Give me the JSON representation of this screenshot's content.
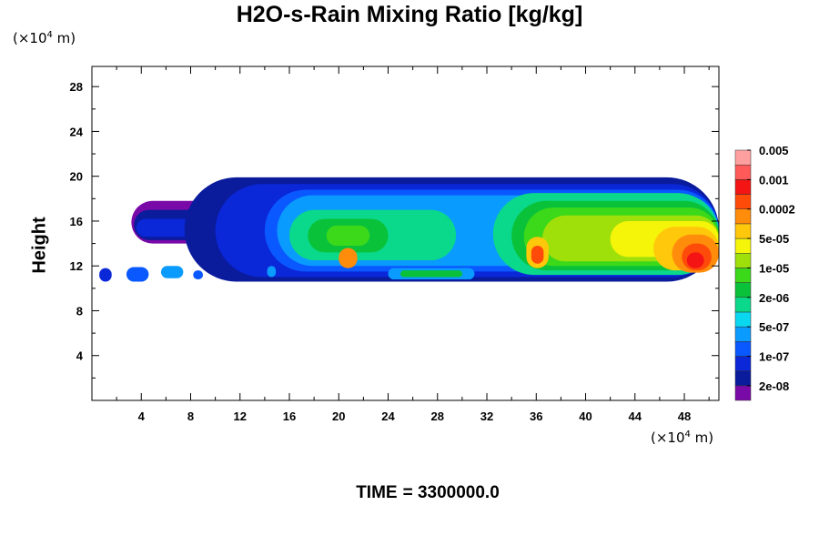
{
  "chart_data": {
    "type": "heatmap",
    "title": "H2O-s-Rain Mixing Ratio [kg/kg]",
    "ylabel": "Height",
    "x_unit": {
      "base": "(×10",
      "exp": "4",
      "tail": " m)"
    },
    "y_unit": {
      "base": "(×10",
      "exp": "4",
      "tail": " m)"
    },
    "x_ticks": [
      "4",
      "8",
      "12",
      "16",
      "20",
      "24",
      "28",
      "32",
      "36",
      "40",
      "44",
      "48"
    ],
    "y_ticks": [
      "4",
      "8",
      "12",
      "16",
      "20",
      "24",
      "28"
    ],
    "xlim": [
      0,
      50.8
    ],
    "ylim": [
      0,
      29.8
    ],
    "time_label": "TIME",
    "time_value": "= 3300000.0",
    "colorbar": {
      "colors": [
        "#7a0aa8",
        "#0a1b9c",
        "#0a27d8",
        "#0a58ff",
        "#0a9bff",
        "#0ad8f0",
        "#0ad88a",
        "#0ac23a",
        "#3cd81a",
        "#a0e00a",
        "#f5f50a",
        "#ffc80a",
        "#ff8c0a",
        "#ff4b0a",
        "#f51414",
        "#ff5a5a",
        "#ffa0a0"
      ],
      "labels": [
        "2e-08",
        "1e-07",
        "5e-07",
        "2e-06",
        "1e-05",
        "5e-05",
        "0.0002",
        "0.001",
        "0.005"
      ]
    },
    "regions": [
      {
        "level": 0,
        "x0": 3.2,
        "x1": 10.5,
        "y0": 14.0,
        "y1": 17.8
      },
      {
        "level": 1,
        "x0": 3.4,
        "x1": 9.5,
        "y0": 14.3,
        "y1": 17.0
      },
      {
        "level": 2,
        "x0": 3.6,
        "x1": 8.5,
        "y0": 14.6,
        "y1": 16.2
      },
      {
        "level": 1,
        "x0": 7.5,
        "x1": 50.8,
        "y0": 10.6,
        "y1": 19.9
      },
      {
        "level": 2,
        "x0": 10.0,
        "x1": 50.8,
        "y0": 11.0,
        "y1": 19.3
      },
      {
        "level": 3,
        "x0": 14.0,
        "x1": 50.8,
        "y0": 11.5,
        "y1": 18.8
      },
      {
        "level": 4,
        "x0": 15.0,
        "x1": 50.8,
        "y0": 12.0,
        "y1": 18.3
      },
      {
        "level": 6,
        "x0": 16.0,
        "x1": 29.5,
        "y0": 12.5,
        "y1": 17.0
      },
      {
        "level": 7,
        "x0": 17.5,
        "x1": 24.0,
        "y0": 13.2,
        "y1": 16.2
      },
      {
        "level": 8,
        "x0": 19.0,
        "x1": 22.5,
        "y0": 13.8,
        "y1": 15.6
      },
      {
        "level": 6,
        "x0": 32.5,
        "x1": 50.8,
        "y0": 11.2,
        "y1": 18.5
      },
      {
        "level": 7,
        "x0": 34.0,
        "x1": 50.8,
        "y0": 11.6,
        "y1": 17.8
      },
      {
        "level": 8,
        "x0": 35.0,
        "x1": 50.8,
        "y0": 12.0,
        "y1": 17.2
      },
      {
        "level": 9,
        "x0": 36.5,
        "x1": 50.8,
        "y0": 12.4,
        "y1": 16.5
      },
      {
        "level": 10,
        "x0": 42.0,
        "x1": 50.8,
        "y0": 12.8,
        "y1": 16.0
      },
      {
        "level": 11,
        "x0": 45.5,
        "x1": 50.8,
        "y0": 11.6,
        "y1": 15.5
      },
      {
        "level": 12,
        "x0": 47.0,
        "x1": 50.8,
        "y0": 11.4,
        "y1": 14.8
      },
      {
        "level": 13,
        "x0": 47.8,
        "x1": 50.2,
        "y0": 11.6,
        "y1": 14.0
      },
      {
        "level": 14,
        "x0": 48.2,
        "x1": 49.6,
        "y0": 11.8,
        "y1": 13.2
      },
      {
        "level": 11,
        "x0": 35.2,
        "x1": 37.0,
        "y0": 11.8,
        "y1": 14.6
      },
      {
        "level": 13,
        "x0": 35.6,
        "x1": 36.6,
        "y0": 12.2,
        "y1": 13.8
      },
      {
        "level": 12,
        "x0": 20.0,
        "x1": 21.5,
        "y0": 11.8,
        "y1": 13.6
      },
      {
        "level": 4,
        "x0": 24.0,
        "x1": 31.0,
        "y0": 10.8,
        "y1": 11.8
      },
      {
        "level": 7,
        "x0": 25.0,
        "x1": 30.0,
        "y0": 11.0,
        "y1": 11.6
      },
      {
        "level": 2,
        "x0": 0.6,
        "x1": 1.6,
        "y0": 10.6,
        "y1": 11.8
      },
      {
        "level": 3,
        "x0": 2.8,
        "x1": 4.6,
        "y0": 10.6,
        "y1": 11.9
      },
      {
        "level": 4,
        "x0": 5.6,
        "x1": 7.4,
        "y0": 10.9,
        "y1": 12.0
      },
      {
        "level": 3,
        "x0": 8.2,
        "x1": 9.0,
        "y0": 10.8,
        "y1": 11.6
      },
      {
        "level": 4,
        "x0": 14.2,
        "x1": 14.9,
        "y0": 11.0,
        "y1": 12.0
      }
    ]
  }
}
